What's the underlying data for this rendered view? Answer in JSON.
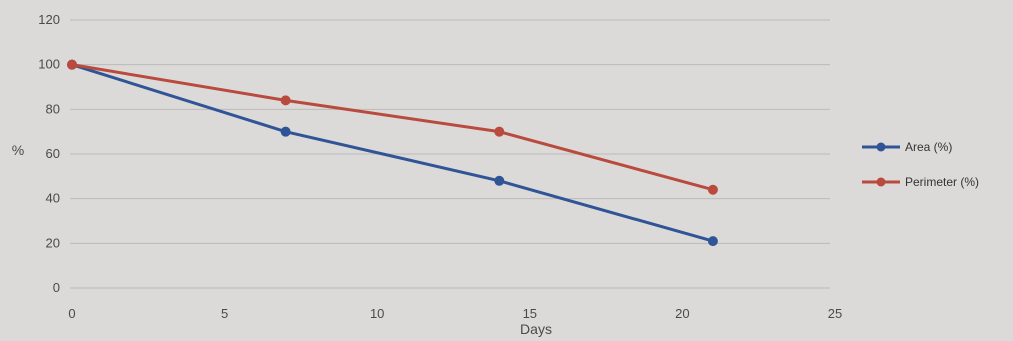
{
  "chart_data": {
    "type": "line",
    "xlabel": "Days",
    "ylabel": "%",
    "xlim": [
      0,
      25
    ],
    "ylim": [
      0,
      120
    ],
    "x_ticks": [
      0,
      5,
      10,
      15,
      20,
      25
    ],
    "y_ticks": [
      0,
      20,
      40,
      60,
      80,
      100,
      120
    ],
    "grid": "horizontal",
    "legend_position": "right",
    "series": [
      {
        "name": "Area (%)",
        "color": "#2f5597",
        "x": [
          0,
          7,
          14,
          21
        ],
        "y": [
          100,
          70,
          48,
          21
        ]
      },
      {
        "name": "Perimeter (%)",
        "color": "#b94a3e",
        "x": [
          0,
          7,
          14,
          21
        ],
        "y": [
          100,
          84,
          70,
          44
        ]
      }
    ]
  }
}
